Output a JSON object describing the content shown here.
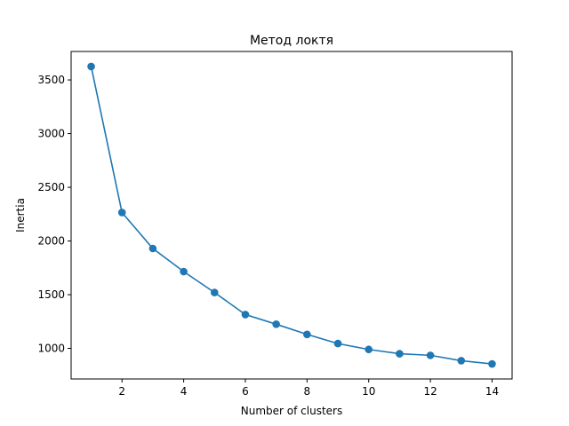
{
  "chart_data": {
    "type": "line",
    "title": "Метод локтя",
    "xlabel": "Number of clusters",
    "ylabel": "Inertia",
    "x": [
      1,
      2,
      3,
      4,
      5,
      6,
      7,
      8,
      9,
      10,
      11,
      12,
      13,
      14
    ],
    "series": [
      {
        "values": [
          3625,
          2265,
          1930,
          1715,
          1520,
          1315,
          1225,
          1130,
          1045,
          990,
          950,
          935,
          885,
          855
        ],
        "color": "#1f77b4",
        "marker": "circle"
      }
    ],
    "xlim": [
      0.35,
      14.65
    ],
    "ylim": [
      715,
      3765
    ],
    "xticks": [
      2,
      4,
      6,
      8,
      10,
      12,
      14
    ],
    "xtick_labels": [
      "2",
      "4",
      "6",
      "8",
      "10",
      "12",
      "14"
    ],
    "yticks": [
      1000,
      1500,
      2000,
      2500,
      3000,
      3500
    ],
    "ytick_labels": [
      "1000",
      "1500",
      "2000",
      "2500",
      "3000",
      "3500"
    ],
    "grid": false,
    "legend": "none"
  }
}
